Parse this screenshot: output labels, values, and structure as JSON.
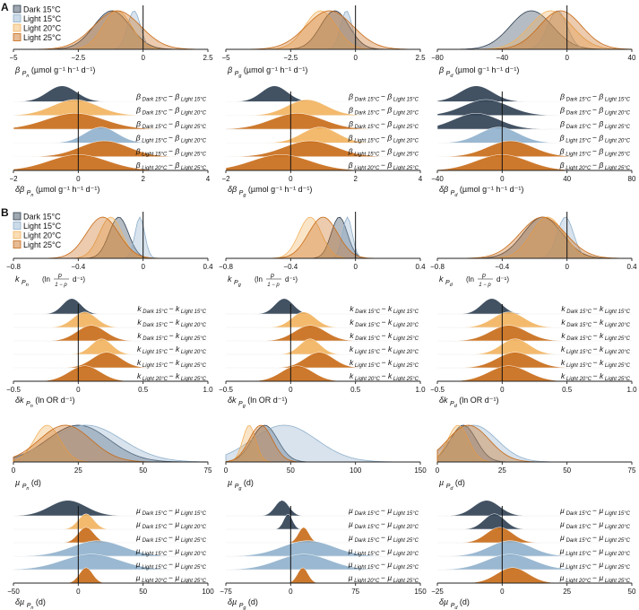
{
  "panel_letters": [
    "A",
    "B"
  ],
  "legend": {
    "entries": [
      "Dark 15°C",
      "Light 15°C",
      "Light 20°C",
      "Light 25°C"
    ],
    "colors": [
      "#2d3f52",
      "#8fb0cc",
      "#f2b35e",
      "#c86a16"
    ]
  },
  "colors": {
    "dark15": "#2d3f52",
    "light15": "#8fb0cc",
    "light20": "#f2b35e",
    "light25": "#c86a16",
    "fill_opacity": "0.35"
  },
  "chart_data": [
    {
      "id": "A1",
      "type": "density",
      "var": "β",
      "sub": "P",
      "subsub": "n",
      "unit": " (µmol g⁻¹ h⁻¹ d⁻¹)",
      "xlim": [
        -5,
        2.5
      ],
      "ticks": [
        -5,
        -2.5,
        0,
        2.5
      ],
      "tick_labels": [
        "−5",
        "−2.5",
        "0",
        "2.5"
      ],
      "vline": 0,
      "series": [
        {
          "name": "Dark 15°C",
          "mean": -1.2,
          "sd": 0.7
        },
        {
          "name": "Light 15°C",
          "mean": -0.35,
          "sd": 0.25
        },
        {
          "name": "Light 20°C",
          "mean": -1.0,
          "sd": 0.55
        },
        {
          "name": "Light 25°C",
          "mean": -1.0,
          "sd": 0.9
        }
      ]
    },
    {
      "id": "A2",
      "type": "density",
      "var": "β",
      "sub": "P",
      "subsub": "g",
      "unit": " (µmol g⁻¹ h⁻¹ d⁻¹)",
      "xlim": [
        -5,
        2.5
      ],
      "ticks": [
        -5,
        -2.5,
        0,
        2.5
      ],
      "tick_labels": [
        "−5",
        "−2.5",
        "0",
        "2.5"
      ],
      "vline": 0,
      "series": [
        {
          "name": "Dark 15°C",
          "mean": -0.8,
          "sd": 0.55
        },
        {
          "name": "Light 15°C",
          "mean": -0.35,
          "sd": 0.22
        },
        {
          "name": "Light 20°C",
          "mean": -1.35,
          "sd": 0.6
        },
        {
          "name": "Light 25°C",
          "mean": -1.0,
          "sd": 0.9
        }
      ]
    },
    {
      "id": "A3",
      "type": "density",
      "var": "β",
      "sub": "P",
      "subsub": "d",
      "unit": " (µmol g⁻¹ h⁻¹ d⁻¹)",
      "xlim": [
        -80,
        40
      ],
      "ticks": [
        -80,
        -40,
        0,
        40
      ],
      "tick_labels": [
        "−80",
        "−40",
        "0",
        "40"
      ],
      "vline": 0,
      "series": [
        {
          "name": "Dark 15°C",
          "mean": -22,
          "sd": 13
        },
        {
          "name": "Light 15°C",
          "mean": -6,
          "sd": 6
        },
        {
          "name": "Light 20°C",
          "mean": -10,
          "sd": 13
        },
        {
          "name": "Light 25°C",
          "mean": -4,
          "sd": 13
        }
      ]
    },
    {
      "id": "A4",
      "type": "ridge",
      "var": "δβ",
      "sub": "P",
      "subsub": "n",
      "unit": " (µmol g⁻¹ h⁻¹ d⁻¹)",
      "xlim": [
        -2,
        4
      ],
      "ticks": [
        -2,
        0,
        2,
        4
      ],
      "tick_labels": [
        "−2",
        "0",
        "2",
        "4"
      ],
      "vline": 0,
      "letter": "β",
      "rows": [
        {
          "a": "Dark 15°C",
          "b": "Light 15°C",
          "mean": -0.5,
          "sd": 0.45,
          "color": "dark15"
        },
        {
          "a": "Dark 15°C",
          "b": "Light 20°C",
          "mean": -0.1,
          "sd": 0.7,
          "color": "light20"
        },
        {
          "a": "Dark 15°C",
          "b": "Light 25°C",
          "mean": -0.1,
          "sd": 0.9,
          "color": "light25"
        },
        {
          "a": "Light 15°C",
          "b": "Light 20°C",
          "mean": 0.7,
          "sd": 0.5,
          "color": "light15"
        },
        {
          "a": "Light 15°C",
          "b": "Light 25°C",
          "mean": 0.8,
          "sd": 0.75,
          "color": "light25"
        },
        {
          "a": "Light 20°C",
          "b": "Light 25°C",
          "mean": 0.0,
          "sd": 0.9,
          "color": "light25"
        }
      ]
    },
    {
      "id": "A5",
      "type": "ridge",
      "var": "δβ",
      "sub": "P",
      "subsub": "g",
      "unit": " (µmol g⁻¹ h⁻¹ d⁻¹)",
      "xlim": [
        -2,
        4
      ],
      "ticks": [
        -2,
        0,
        2,
        4
      ],
      "tick_labels": [
        "−2",
        "0",
        "2",
        "4"
      ],
      "vline": 0,
      "letter": "β",
      "rows": [
        {
          "a": "Dark 15°C",
          "b": "Light 15°C",
          "mean": -0.5,
          "sd": 0.4,
          "color": "dark15"
        },
        {
          "a": "Dark 15°C",
          "b": "Light 20°C",
          "mean": 0.5,
          "sd": 0.6,
          "color": "light20"
        },
        {
          "a": "Dark 15°C",
          "b": "Light 25°C",
          "mean": 0.2,
          "sd": 0.8,
          "color": "light25"
        },
        {
          "a": "Light 15°C",
          "b": "Light 20°C",
          "mean": 0.9,
          "sd": 0.55,
          "color": "light20"
        },
        {
          "a": "Light 15°C",
          "b": "Light 25°C",
          "mean": 0.6,
          "sd": 0.8,
          "color": "light25"
        },
        {
          "a": "Light 20°C",
          "b": "Light 25°C",
          "mean": -0.3,
          "sd": 0.9,
          "color": "light25"
        }
      ]
    },
    {
      "id": "A6",
      "type": "ridge",
      "var": "δβ",
      "sub": "P",
      "subsub": "d",
      "unit": " (µmol g⁻¹ h⁻¹ d⁻¹)",
      "xlim": [
        -40,
        80
      ],
      "ticks": [
        -40,
        0,
        40,
        80
      ],
      "tick_labels": [
        "−40",
        "0",
        "40",
        "80"
      ],
      "vline": 0,
      "letter": "β",
      "rows": [
        {
          "a": "Dark 15°C",
          "b": "Light 15°C",
          "mean": -16,
          "sd": 10,
          "color": "dark15"
        },
        {
          "a": "Dark 15°C",
          "b": "Light 20°C",
          "mean": -10,
          "sd": 14,
          "color": "dark15"
        },
        {
          "a": "Dark 15°C",
          "b": "Light 25°C",
          "mean": -16,
          "sd": 14,
          "color": "dark15"
        },
        {
          "a": "Light 15°C",
          "b": "Light 20°C",
          "mean": -2,
          "sd": 12,
          "color": "light15"
        },
        {
          "a": "Light 15°C",
          "b": "Light 25°C",
          "mean": 5,
          "sd": 14,
          "color": "light25"
        },
        {
          "a": "Light 20°C",
          "b": "Light 25°C",
          "mean": 0,
          "sd": 16,
          "color": "light25"
        }
      ]
    },
    {
      "id": "B1",
      "type": "density",
      "var": "k",
      "sub": "P",
      "subsub": "n",
      "unit": "",
      "logit": true,
      "xlim": [
        -0.8,
        0.4
      ],
      "ticks": [
        -0.8,
        -0.4,
        0,
        0.4
      ],
      "tick_labels": [
        "−0.8",
        "−0.4",
        "0",
        "0.4"
      ],
      "vline": 0,
      "series": [
        {
          "name": "Dark 15°C",
          "mean": -0.15,
          "sd": 0.06
        },
        {
          "name": "Light 15°C",
          "mean": -0.02,
          "sd": 0.03
        },
        {
          "name": "Light 20°C",
          "mean": -0.2,
          "sd": 0.07
        },
        {
          "name": "Light 25°C",
          "mean": -0.25,
          "sd": 0.1
        }
      ]
    },
    {
      "id": "B2",
      "type": "density",
      "var": "k",
      "sub": "P",
      "subsub": "g",
      "unit": "",
      "logit": true,
      "xlim": [
        -0.8,
        0.4
      ],
      "ticks": [
        -0.8,
        -0.4,
        0,
        0.4
      ],
      "tick_labels": [
        "−0.8",
        "−0.4",
        "0",
        "0.4"
      ],
      "vline": 0,
      "series": [
        {
          "name": "Dark 15°C",
          "mean": -0.1,
          "sd": 0.05
        },
        {
          "name": "Light 15°C",
          "mean": -0.05,
          "sd": 0.03
        },
        {
          "name": "Light 20°C",
          "mean": -0.28,
          "sd": 0.07
        },
        {
          "name": "Light 25°C",
          "mean": -0.2,
          "sd": 0.09
        }
      ]
    },
    {
      "id": "B3",
      "type": "density",
      "var": "k",
      "sub": "P",
      "subsub": "d",
      "unit": "",
      "logit": true,
      "xlim": [
        -0.8,
        0.4
      ],
      "ticks": [
        -0.8,
        -0.4,
        0,
        0.4
      ],
      "tick_labels": [
        "−0.8",
        "−0.4",
        "0",
        "0.4"
      ],
      "vline": 0,
      "series": [
        {
          "name": "Dark 15°C",
          "mean": -0.15,
          "sd": 0.12
        },
        {
          "name": "Light 15°C",
          "mean": -0.01,
          "sd": 0.05
        },
        {
          "name": "Light 20°C",
          "mean": -0.12,
          "sd": 0.1
        },
        {
          "name": "Light 25°C",
          "mean": -0.15,
          "sd": 0.14
        }
      ]
    },
    {
      "id": "B4",
      "type": "ridge",
      "var": "δk",
      "sub": "P",
      "subsub": "n",
      "unit": " (ln OR d⁻¹)",
      "xlim": [
        -0.5,
        1.0
      ],
      "ticks": [
        -0.5,
        0,
        0.5,
        1.0
      ],
      "tick_labels": [
        "−0.5",
        "0",
        "0.5",
        "1.0"
      ],
      "vline": 0,
      "letter": "k",
      "rows": [
        {
          "a": "Dark 15°C",
          "b": "Light 15°C",
          "mean": -0.05,
          "sd": 0.07,
          "color": "dark15"
        },
        {
          "a": "Dark 15°C",
          "b": "Light 20°C",
          "mean": 0.05,
          "sd": 0.09,
          "color": "light20"
        },
        {
          "a": "Dark 15°C",
          "b": "Light 25°C",
          "mean": 0.1,
          "sd": 0.11,
          "color": "light25"
        },
        {
          "a": "Light 15°C",
          "b": "Light 20°C",
          "mean": 0.18,
          "sd": 0.08,
          "color": "light20"
        },
        {
          "a": "Light 15°C",
          "b": "Light 25°C",
          "mean": 0.22,
          "sd": 0.11,
          "color": "light25"
        },
        {
          "a": "Light 20°C",
          "b": "Light 25°C",
          "mean": 0.05,
          "sd": 0.12,
          "color": "light25"
        }
      ]
    },
    {
      "id": "B5",
      "type": "ridge",
      "var": "δk",
      "sub": "P",
      "subsub": "g",
      "unit": " (ln OR d⁻¹)",
      "xlim": [
        -0.5,
        1.0
      ],
      "ticks": [
        -0.5,
        0,
        0.5,
        1.0
      ],
      "tick_labels": [
        "−0.5",
        "0",
        "0.5",
        "1.0"
      ],
      "vline": 0,
      "letter": "k",
      "rows": [
        {
          "a": "Dark 15°C",
          "b": "Light 15°C",
          "mean": -0.05,
          "sd": 0.07,
          "color": "dark15"
        },
        {
          "a": "Dark 15°C",
          "b": "Light 20°C",
          "mean": 0.1,
          "sd": 0.09,
          "color": "light20"
        },
        {
          "a": "Dark 15°C",
          "b": "Light 25°C",
          "mean": 0.15,
          "sd": 0.12,
          "color": "light25"
        },
        {
          "a": "Light 15°C",
          "b": "Light 20°C",
          "mean": 0.15,
          "sd": 0.08,
          "color": "light20"
        },
        {
          "a": "Light 15°C",
          "b": "Light 25°C",
          "mean": 0.22,
          "sd": 0.11,
          "color": "light25"
        },
        {
          "a": "Light 20°C",
          "b": "Light 25°C",
          "mean": 0.05,
          "sd": 0.12,
          "color": "light25"
        }
      ]
    },
    {
      "id": "B6",
      "type": "ridge",
      "var": "δk",
      "sub": "P",
      "subsub": "d",
      "unit": " (ln OR d⁻¹)",
      "xlim": [
        -0.5,
        1.0
      ],
      "ticks": [
        -0.5,
        0,
        0.5,
        1.0
      ],
      "tick_labels": [
        "−0.5",
        "0",
        "0.5",
        "1.0"
      ],
      "vline": 0,
      "letter": "k",
      "rows": [
        {
          "a": "Dark 15°C",
          "b": "Light 15°C",
          "mean": -0.08,
          "sd": 0.08,
          "color": "dark15"
        },
        {
          "a": "Dark 15°C",
          "b": "Light 20°C",
          "mean": 0.05,
          "sd": 0.12,
          "color": "light20"
        },
        {
          "a": "Dark 15°C",
          "b": "Light 25°C",
          "mean": 0.05,
          "sd": 0.14,
          "color": "light25"
        },
        {
          "a": "Light 15°C",
          "b": "Light 20°C",
          "mean": 0.1,
          "sd": 0.11,
          "color": "light20"
        },
        {
          "a": "Light 15°C",
          "b": "Light 25°C",
          "mean": 0.1,
          "sd": 0.14,
          "color": "light25"
        },
        {
          "a": "Light 20°C",
          "b": "Light 25°C",
          "mean": 0.05,
          "sd": 0.15,
          "color": "light25"
        }
      ]
    },
    {
      "id": "C1",
      "type": "density",
      "var": "µ",
      "sub": "P",
      "subsub": "n",
      "unit": " (d)",
      "xlim": [
        0,
        75
      ],
      "ticks": [
        0,
        25,
        50,
        75
      ],
      "tick_labels": [
        "0",
        "25",
        "50",
        "75"
      ],
      "vline": null,
      "series": [
        {
          "name": "Dark 15°C",
          "mean": 25,
          "sd": 12
        },
        {
          "name": "Light 15°C",
          "mean": 28,
          "sd": 14
        },
        {
          "name": "Light 20°C",
          "mean": 13,
          "sd": 5
        },
        {
          "name": "Light 25°C",
          "mean": 20,
          "sd": 10
        }
      ]
    },
    {
      "id": "C2",
      "type": "density",
      "var": "µ",
      "sub": "P",
      "subsub": "g",
      "unit": " (d)",
      "xlim": [
        0,
        150
      ],
      "ticks": [
        0,
        50,
        100,
        150
      ],
      "tick_labels": [
        "0",
        "50",
        "100",
        "150"
      ],
      "vline": null,
      "series": [
        {
          "name": "Dark 15°C",
          "mean": 30,
          "sd": 10
        },
        {
          "name": "Light 15°C",
          "mean": 45,
          "sd": 25
        },
        {
          "name": "Light 20°C",
          "mean": 18,
          "sd": 5
        },
        {
          "name": "Light 25°C",
          "mean": 27,
          "sd": 9
        }
      ]
    },
    {
      "id": "C3",
      "type": "density",
      "var": "µ",
      "sub": "P",
      "subsub": "d",
      "unit": " (d)",
      "xlim": [
        0,
        75
      ],
      "ticks": [
        0,
        25,
        50,
        75
      ],
      "tick_labels": [
        "0",
        "25",
        "50",
        "75"
      ],
      "vline": null,
      "series": [
        {
          "name": "Dark 15°C",
          "mean": 10,
          "sd": 5
        },
        {
          "name": "Light 15°C",
          "mean": 14,
          "sd": 9
        },
        {
          "name": "Light 20°C",
          "mean": 8,
          "sd": 4
        },
        {
          "name": "Light 25°C",
          "mean": 12,
          "sd": 8
        }
      ]
    },
    {
      "id": "C4",
      "type": "ridge",
      "var": "δµ",
      "sub": "P",
      "subsub": "n",
      "unit": " (d)",
      "xlim": [
        -50,
        100
      ],
      "ticks": [
        -50,
        0,
        50,
        100
      ],
      "tick_labels": [
        "−50",
        "0",
        "50",
        "100"
      ],
      "vline": 0,
      "letter": "µ",
      "rows": [
        {
          "a": "Dark 15°C",
          "b": "Light 15°C",
          "mean": -8,
          "sd": 14,
          "color": "dark15"
        },
        {
          "a": "Dark 15°C",
          "b": "Light 20°C",
          "mean": 6,
          "sd": 6,
          "color": "light20"
        },
        {
          "a": "Dark 15°C",
          "b": "Light 25°C",
          "mean": 6,
          "sd": 6,
          "color": "light25"
        },
        {
          "a": "Light 15°C",
          "b": "Light 20°C",
          "mean": 15,
          "sd": 20,
          "color": "light15"
        },
        {
          "a": "Light 15°C",
          "b": "Light 25°C",
          "mean": 10,
          "sd": 22,
          "color": "light15"
        },
        {
          "a": "Light 20°C",
          "b": "Light 25°C",
          "mean": 6,
          "sd": 5,
          "color": "light25"
        }
      ]
    },
    {
      "id": "C5",
      "type": "ridge",
      "var": "δµ",
      "sub": "P",
      "subsub": "g",
      "unit": " (d)",
      "xlim": [
        -75,
        150
      ],
      "ticks": [
        -75,
        0,
        75,
        150
      ],
      "tick_labels": [
        "−75",
        "0",
        "75",
        "150"
      ],
      "vline": 0,
      "letter": "µ",
      "rows": [
        {
          "a": "Dark 15°C",
          "b": "Light 15°C",
          "mean": -10,
          "sd": 8,
          "color": "dark15"
        },
        {
          "a": "Dark 15°C",
          "b": "Light 20°C",
          "mean": -3,
          "sd": 5,
          "color": "dark15"
        },
        {
          "a": "Dark 15°C",
          "b": "Light 25°C",
          "mean": 15,
          "sd": 6,
          "color": "light25"
        },
        {
          "a": "Light 15°C",
          "b": "Light 20°C",
          "mean": 20,
          "sd": 30,
          "color": "light15"
        },
        {
          "a": "Light 15°C",
          "b": "Light 25°C",
          "mean": 15,
          "sd": 30,
          "color": "light15"
        },
        {
          "a": "Light 20°C",
          "b": "Light 25°C",
          "mean": 14,
          "sd": 6,
          "color": "light25"
        }
      ]
    },
    {
      "id": "C6",
      "type": "ridge",
      "var": "δµ",
      "sub": "P",
      "subsub": "d",
      "unit": " (d)",
      "xlim": [
        -25,
        50
      ],
      "ticks": [
        -25,
        0,
        25,
        50
      ],
      "tick_labels": [
        "−25",
        "0",
        "25",
        "50"
      ],
      "vline": 0,
      "letter": "µ",
      "rows": [
        {
          "a": "Dark 15°C",
          "b": "Light 15°C",
          "mean": -6,
          "sd": 5,
          "color": "dark15"
        },
        {
          "a": "Dark 15°C",
          "b": "Light 20°C",
          "mean": -3,
          "sd": 4,
          "color": "dark15"
        },
        {
          "a": "Dark 15°C",
          "b": "Light 25°C",
          "mean": -1,
          "sd": 5,
          "color": "light25"
        },
        {
          "a": "Light 15°C",
          "b": "Light 20°C",
          "mean": 3,
          "sd": 8,
          "color": "light15"
        },
        {
          "a": "Light 15°C",
          "b": "Light 25°C",
          "mean": 3,
          "sd": 9,
          "color": "light15"
        },
        {
          "a": "Light 20°C",
          "b": "Light 25°C",
          "mean": 4,
          "sd": 6,
          "color": "light25"
        }
      ]
    }
  ]
}
